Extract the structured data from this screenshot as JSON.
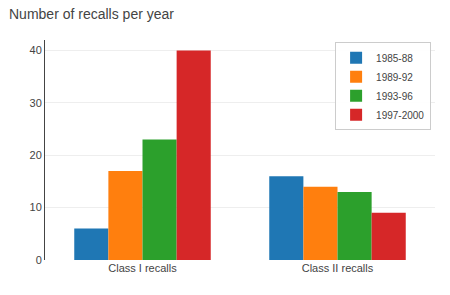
{
  "chart_data": {
    "type": "bar",
    "title": "Number of recalls per year",
    "categories": [
      "Class I recalls",
      "Class II recalls"
    ],
    "series": [
      {
        "name": "1985-88",
        "values": [
          6,
          16
        ]
      },
      {
        "name": "1989-92",
        "values": [
          17,
          14
        ]
      },
      {
        "name": "1993-96",
        "values": [
          23,
          13
        ]
      },
      {
        "name": "1997-2000",
        "values": [
          40,
          9
        ]
      }
    ],
    "ylim": [
      0,
      42
    ],
    "yticks": [
      0,
      10,
      20,
      30,
      40
    ],
    "grid": true,
    "legend": "upper right"
  }
}
